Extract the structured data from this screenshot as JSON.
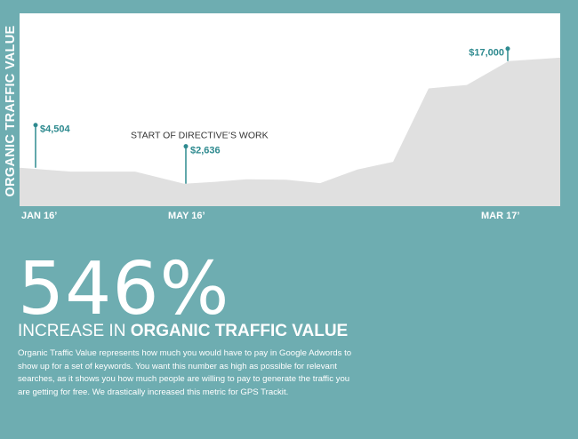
{
  "chart_data": {
    "type": "area",
    "ylabel": "ORGANIC TRAFFIC VALUE",
    "xlabel": "",
    "tick_labels": [
      "JAN 16’",
      "MAY 16’",
      "MAR 17’"
    ],
    "ylim": [
      0,
      20000
    ],
    "values": [
      4504,
      4050,
      4050,
      2636,
      2850,
      3150,
      3100,
      2700,
      4300,
      5200,
      13800,
      14200,
      17000,
      17400
    ],
    "tick_indices": [
      0,
      3,
      12
    ],
    "annotations": [
      {
        "index": 0,
        "value_label": "$4,504"
      },
      {
        "index": 3,
        "value_label": "$2,636",
        "note": "START OF DIRECTIVE’S WORK"
      },
      {
        "index": 12,
        "value_label": "$17,000"
      }
    ],
    "fill_color": "#e0e0e0",
    "marker_color": "#2e8a8f"
  },
  "stat": {
    "value": "546%",
    "headline_prefix": "INCREASE IN ",
    "headline_bold": "ORGANIC TRAFFIC VALUE",
    "description": "Organic Traffic Value represents how much you would have to pay in Google Adwords to show up for a set of keywords. You want this number as high as possible for relevant searches, as it shows you how much people are willing to pay to generate the traffic you are getting for free. We drastically increased this metric for GPS Trackit."
  },
  "colors": {
    "background": "#6eadb1",
    "panel": "#ffffff",
    "text": "#ffffff",
    "accent": "#2e8a8f"
  }
}
